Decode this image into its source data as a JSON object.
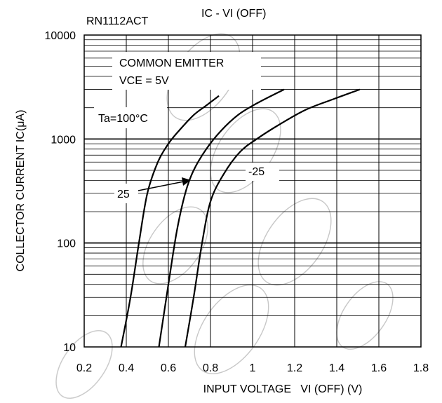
{
  "chart_data": {
    "type": "line",
    "part_number": "RN1112ACT",
    "title": "IC - VI (OFF)",
    "xlabel": "INPUT VOLTAGE   VI (OFF) (V)",
    "ylabel": "COLLECTOR CURRENT  IC(μA)",
    "x_ticks": [
      "0.2",
      "0.4",
      "0.6",
      "0.8",
      "1",
      "1.2",
      "1.4",
      "1.6",
      "1.8"
    ],
    "y_ticks": [
      "10",
      "100",
      "1000",
      "10000"
    ],
    "xlim": [
      0.2,
      1.8
    ],
    "ylim": [
      10,
      10000
    ],
    "y_scale": "log",
    "grid": true,
    "annotations": {
      "condition_1": "COMMON EMITTER",
      "condition_2": "VCE = 5V",
      "ta_label": "Ta=100°C",
      "label_25": "25",
      "label_minus25": "-25"
    },
    "series": [
      {
        "name": "Ta=100°C",
        "x": [
          0.375,
          0.42,
          0.46,
          0.5,
          0.55,
          0.6,
          0.65,
          0.72,
          0.78,
          0.84
        ],
        "y": [
          10,
          30,
          100,
          300,
          600,
          900,
          1200,
          1700,
          2100,
          2600
        ]
      },
      {
        "name": "25",
        "x": [
          0.555,
          0.6,
          0.64,
          0.68,
          0.72,
          0.78,
          0.85,
          0.93,
          1.02,
          1.15
        ],
        "y": [
          10,
          40,
          130,
          300,
          500,
          800,
          1200,
          1700,
          2200,
          3000
        ]
      },
      {
        "name": "-25",
        "x": [
          0.68,
          0.72,
          0.76,
          0.8,
          0.86,
          0.94,
          1.02,
          1.12,
          1.25,
          1.38,
          1.51
        ],
        "y": [
          10,
          30,
          100,
          250,
          450,
          750,
          1000,
          1350,
          1900,
          2400,
          3000
        ]
      }
    ]
  }
}
